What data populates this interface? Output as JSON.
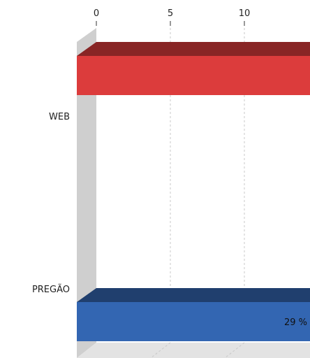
{
  "chart_data": {
    "type": "bar",
    "orientation": "horizontal",
    "three_d": true,
    "categories": [
      "WEB",
      "PREGÃO"
    ],
    "x_ticks": [
      0,
      5,
      10
    ],
    "xlim": [
      0,
      14
    ],
    "grid": true,
    "series": [
      {
        "color": "#dc3c3c",
        "values": [
          14,
          null
        ]
      },
      {
        "color": "#3366b2",
        "values": [
          null,
          14
        ],
        "data_labels": [
          null,
          "29 %"
        ]
      }
    ]
  }
}
